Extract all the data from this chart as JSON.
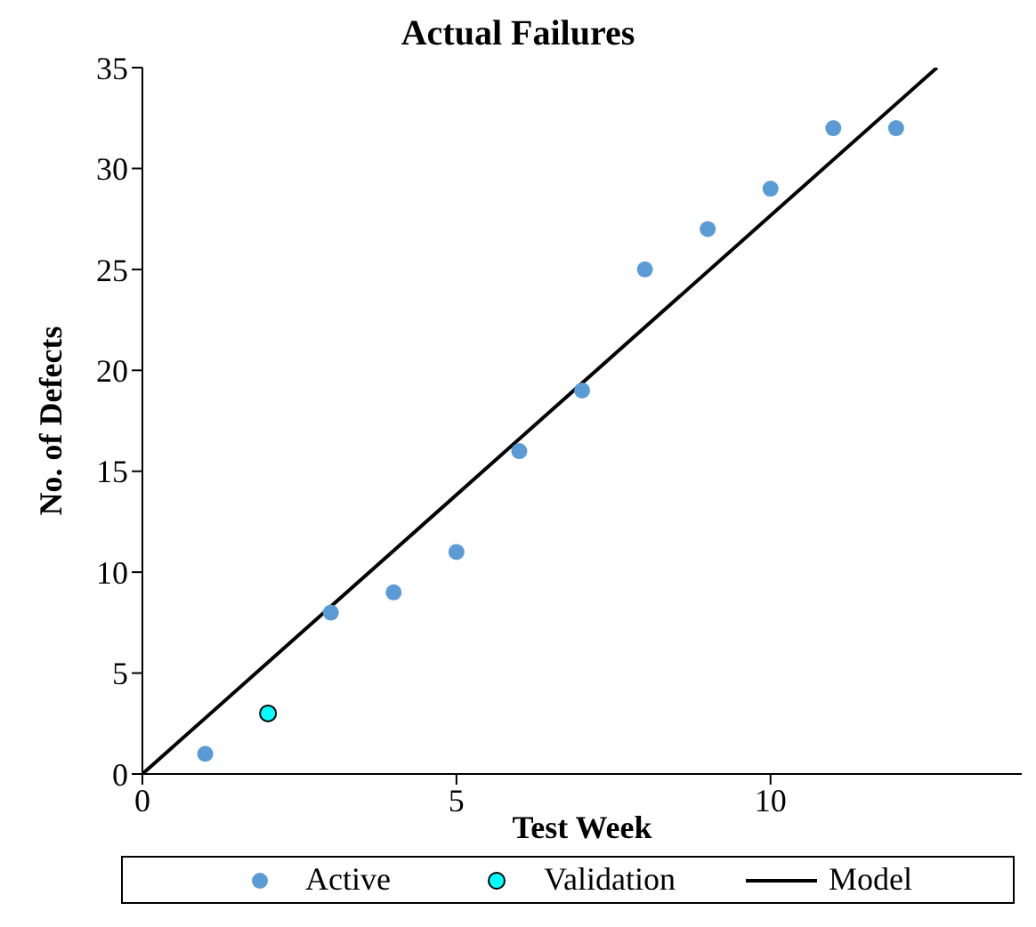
{
  "chart_data": {
    "type": "scatter",
    "title": "Actual Failures",
    "xlabel": "Test Week",
    "ylabel": "No. of Defects",
    "xlim": [
      0,
      14
    ],
    "xticks": [
      0,
      5,
      10
    ],
    "ylim": [
      0,
      35
    ],
    "yticks": [
      0,
      5,
      10,
      15,
      20,
      25,
      30,
      35
    ],
    "grid": false,
    "legend": "bottom",
    "marker": "circle",
    "series": [
      {
        "name": "Active",
        "color": "#5b9bd5",
        "x": [
          1,
          3,
          4,
          5,
          6,
          7,
          8,
          9,
          10,
          11,
          12
        ],
        "values": [
          1,
          8,
          9,
          11,
          16,
          19,
          25,
          27,
          29,
          32,
          32
        ]
      },
      {
        "name": "Validation",
        "color": "#00ffff",
        "x": [
          2
        ],
        "values": [
          3
        ]
      },
      {
        "name": "Model",
        "type": "line",
        "color": "#000000",
        "line_style": "solid",
        "marker": "none",
        "x": [
          0,
          12.65
        ],
        "values": [
          0,
          35
        ]
      }
    ]
  }
}
